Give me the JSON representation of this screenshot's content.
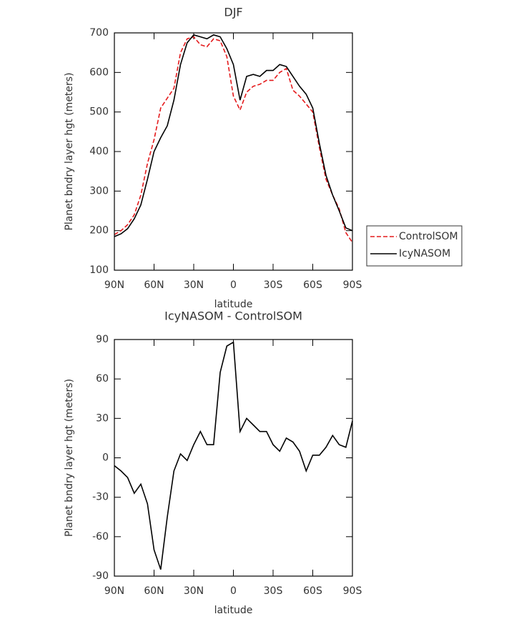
{
  "chart_data": [
    {
      "type": "line",
      "title": "DJF",
      "xlabel": "latitude",
      "ylabel": "Planet bndry layer hgt (meters)",
      "x": [
        90,
        85,
        80,
        75,
        70,
        65,
        60,
        55,
        50,
        45,
        40,
        35,
        30,
        25,
        20,
        15,
        10,
        5,
        0,
        -5,
        -10,
        -15,
        -20,
        -25,
        -30,
        -35,
        -40,
        -45,
        -50,
        -55,
        -60,
        -65,
        -70,
        -75,
        -80,
        -85,
        -90
      ],
      "series": [
        {
          "name": "ControlSOM",
          "color": "#e41a1c",
          "linestyle": "dashed",
          "values": [
            190,
            200,
            215,
            240,
            290,
            370,
            430,
            510,
            535,
            560,
            650,
            685,
            690,
            670,
            665,
            685,
            680,
            640,
            540,
            505,
            550,
            565,
            570,
            580,
            580,
            600,
            610,
            555,
            540,
            520,
            500,
            410,
            330,
            290,
            255,
            195,
            170
          ]
        },
        {
          "name": "IcyNASOM",
          "color": "#000000",
          "linestyle": "solid",
          "values": [
            185,
            192,
            205,
            230,
            265,
            330,
            400,
            435,
            465,
            530,
            620,
            675,
            695,
            690,
            685,
            695,
            690,
            660,
            620,
            530,
            590,
            595,
            590,
            605,
            605,
            620,
            615,
            590,
            565,
            545,
            510,
            420,
            340,
            290,
            250,
            207,
            200
          ]
        }
      ],
      "xlim": [
        90,
        -90
      ],
      "xticks": [
        {
          "value": 90,
          "label": "90N"
        },
        {
          "value": 60,
          "label": "60N"
        },
        {
          "value": 30,
          "label": "30N"
        },
        0,
        {
          "value": -30,
          "label": "30S"
        },
        {
          "value": -60,
          "label": "60S"
        },
        {
          "value": -90,
          "label": "90S"
        }
      ],
      "ylim": [
        100,
        700
      ],
      "yticks": [
        100,
        200,
        300,
        400,
        500,
        600,
        700
      ],
      "legend": "right"
    },
    {
      "type": "line",
      "title": "IcyNASOM - ControlSOM",
      "xlabel": "latitude",
      "ylabel": "Planet bndry layer hgt (meters)",
      "x": [
        90,
        85,
        80,
        75,
        70,
        65,
        60,
        55,
        50,
        45,
        40,
        35,
        30,
        25,
        20,
        15,
        10,
        5,
        0,
        -5,
        -10,
        -15,
        -20,
        -25,
        -30,
        -35,
        -40,
        -45,
        -50,
        -55,
        -60,
        -65,
        -70,
        -75,
        -80,
        -85,
        -90
      ],
      "series": [
        {
          "color": "#000000",
          "linestyle": "solid",
          "values": [
            -6,
            -10,
            -15,
            -27,
            -20,
            -35,
            -70,
            -85,
            -45,
            -10,
            3,
            -2,
            10,
            20,
            10,
            10,
            65,
            85,
            88,
            20,
            30,
            25,
            20,
            20,
            10,
            5,
            15,
            12,
            5,
            -10,
            2,
            2,
            8,
            17,
            10,
            8,
            28
          ]
        }
      ],
      "xlim": [
        90,
        -90
      ],
      "xticks": [
        {
          "value": 90,
          "label": "90N"
        },
        {
          "value": 60,
          "label": "60N"
        },
        {
          "value": 30,
          "label": "30N"
        },
        0,
        {
          "value": -30,
          "label": "30S"
        },
        {
          "value": -60,
          "label": "60S"
        },
        {
          "value": -90,
          "label": "90S"
        }
      ],
      "ylim": [
        -90,
        90
      ],
      "yticks": [
        -90,
        -60,
        -30,
        0,
        30,
        60,
        90
      ]
    }
  ]
}
